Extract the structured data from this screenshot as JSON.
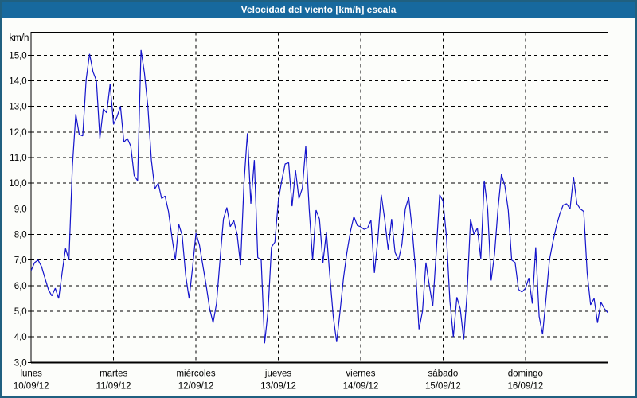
{
  "window": {
    "title": "Velocidad del viento [km/h] escala"
  },
  "colors": {
    "title_bar": "#17699e",
    "outer_border": "#206080",
    "series_line": "#1414cc",
    "grid": "#000000",
    "background": "#fcfdfa"
  },
  "chart_data": {
    "type": "line",
    "title": "Velocidad del viento [km/h] escala",
    "xlabel": "",
    "ylabel": "km/h",
    "ylim": [
      3.0,
      15.9
    ],
    "grid": "dashed",
    "legend_position": "none",
    "y_ticks": [
      {
        "value": 15,
        "label": "15,0"
      },
      {
        "value": 14,
        "label": "14,0"
      },
      {
        "value": 13,
        "label": "13,0"
      },
      {
        "value": 12,
        "label": "12,0"
      },
      {
        "value": 11,
        "label": "11,0"
      },
      {
        "value": 10,
        "label": "10,0"
      },
      {
        "value": 9,
        "label": "9,0"
      },
      {
        "value": 8,
        "label": "8,0"
      },
      {
        "value": 7,
        "label": "7,0"
      },
      {
        "value": 6,
        "label": "6,0"
      },
      {
        "value": 5,
        "label": "5,0"
      },
      {
        "value": 4,
        "label": "4,0"
      },
      {
        "value": 3,
        "label": "3,0"
      }
    ],
    "days": [
      {
        "name": "lunes",
        "date": "10/09/12"
      },
      {
        "name": "martes",
        "date": "11/09/12"
      },
      {
        "name": "miércoles",
        "date": "12/09/12"
      },
      {
        "name": "jueves",
        "date": "13/09/12"
      },
      {
        "name": "viernes",
        "date": "14/09/12"
      },
      {
        "name": "sábado",
        "date": "15/09/12"
      },
      {
        "name": "domingo",
        "date": "16/09/12"
      }
    ],
    "points_per_day": 24,
    "series_name": "Velocidad del viento",
    "values": [
      6.6,
      6.9,
      7.0,
      6.75,
      6.3,
      5.85,
      5.6,
      5.9,
      5.5,
      6.5,
      7.45,
      7.0,
      10.65,
      12.7,
      11.9,
      11.85,
      14.05,
      15.05,
      14.35,
      14.0,
      11.75,
      12.9,
      12.75,
      13.87,
      12.3,
      12.6,
      13.0,
      11.6,
      11.75,
      11.45,
      10.3,
      10.1,
      15.2,
      14.3,
      13.0,
      10.9,
      9.78,
      10.0,
      9.4,
      9.5,
      8.9,
      7.9,
      7.0,
      8.4,
      7.95,
      6.4,
      5.5,
      6.7,
      8.05,
      7.6,
      6.8,
      6.0,
      5.1,
      4.55,
      5.3,
      7.0,
      8.6,
      9.05,
      8.3,
      8.55,
      8.0,
      6.8,
      10.0,
      11.95,
      9.2,
      10.9,
      7.1,
      7.0,
      3.75,
      5.0,
      7.5,
      7.7,
      9.3,
      10.1,
      10.75,
      10.8,
      9.1,
      10.5,
      9.4,
      9.8,
      11.45,
      9.0,
      7.0,
      8.95,
      8.6,
      6.9,
      8.1,
      6.4,
      4.8,
      3.8,
      5.0,
      6.3,
      7.3,
      8.1,
      8.7,
      8.35,
      8.3,
      8.2,
      8.25,
      8.55,
      6.5,
      7.8,
      9.55,
      8.6,
      7.4,
      8.6,
      7.3,
      7.0,
      7.6,
      9.0,
      9.45,
      8.2,
      6.6,
      4.3,
      5.0,
      6.9,
      6.0,
      5.2,
      7.3,
      9.55,
      9.3,
      7.9,
      5.4,
      4.0,
      5.55,
      5.1,
      3.9,
      5.7,
      8.6,
      8.0,
      8.25,
      7.05,
      10.1,
      9.0,
      6.2,
      7.25,
      9.0,
      10.35,
      9.9,
      8.95,
      7.0,
      6.9,
      5.85,
      5.75,
      5.9,
      6.3,
      5.3,
      7.5,
      4.8,
      4.1,
      5.5,
      7.0,
      7.7,
      8.3,
      8.8,
      9.15,
      9.2,
      9.0,
      10.25,
      9.2,
      9.0,
      8.9,
      6.5,
      5.25,
      5.5,
      4.55,
      5.35,
      5.1,
      4.95
    ]
  }
}
